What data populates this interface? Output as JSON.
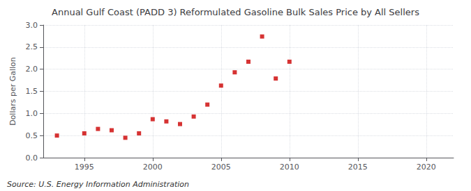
{
  "chart_data": {
    "type": "scatter",
    "title": "Annual Gulf Coast (PADD 3) Reformulated Gasoline Bulk Sales Price by All Sellers",
    "ylabel": "Dollars per Gallon",
    "annotations": [
      "Source: U.S. Energy Information Administration"
    ],
    "x": [
      1993,
      1995,
      1996,
      1997,
      1998,
      1999,
      2000,
      2001,
      2002,
      2003,
      2004,
      2005,
      2006,
      2007,
      2008,
      2009,
      2010
    ],
    "values": [
      0.5,
      0.55,
      0.65,
      0.62,
      0.45,
      0.55,
      0.87,
      0.82,
      0.76,
      0.93,
      1.2,
      1.63,
      1.93,
      2.17,
      2.74,
      1.79,
      2.17
    ],
    "color": "#cc0000",
    "marker": "square",
    "xlim": [
      1992,
      2022
    ],
    "xticks": [
      1995,
      2000,
      2005,
      2010,
      2015,
      2020
    ],
    "ylim": [
      0.0,
      3.0
    ],
    "yticks": [
      {
        "value": 0.0,
        "label": "0.0"
      },
      0.5,
      {
        "value": 1.0,
        "label": "1.0"
      },
      1.5,
      {
        "value": 2.0,
        "label": "2.0"
      },
      2.5,
      {
        "value": 3.0,
        "label": "3.0"
      }
    ],
    "grid": true
  }
}
